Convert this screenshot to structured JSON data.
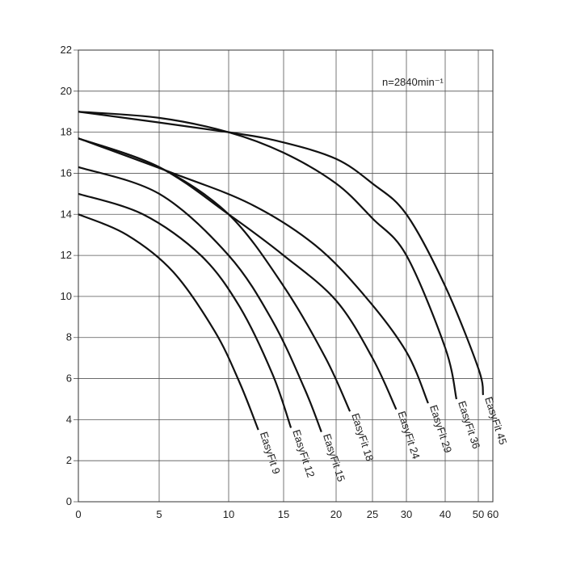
{
  "chart_data": {
    "type": "line",
    "annotation": "n=2840min⁻¹",
    "xlim": [
      0,
      60
    ],
    "xticks": [
      0,
      5,
      10,
      15,
      20,
      25,
      30,
      40,
      50,
      60
    ],
    "ylim": [
      0,
      22
    ],
    "yticks": [
      0,
      2,
      4,
      6,
      8,
      10,
      12,
      14,
      16,
      18,
      20,
      22
    ],
    "grid": true,
    "series": [
      {
        "name": "EasyFit 9",
        "color": "#111111",
        "x": [
          0,
          3,
          6,
          9,
          11,
          12.7
        ],
        "values": [
          14,
          13,
          11.2,
          8.3,
          5.8,
          3.5
        ]
      },
      {
        "name": "EasyFit 12",
        "color": "#111111",
        "x": [
          0,
          4,
          8,
          11,
          14,
          15.7
        ],
        "values": [
          15,
          14,
          12,
          9.5,
          6.2,
          3.6
        ]
      },
      {
        "name": "EasyFit 15",
        "color": "#111111",
        "x": [
          0,
          5,
          10,
          14,
          17,
          18.6
        ],
        "values": [
          16.3,
          15,
          12,
          8.8,
          5.5,
          3.4
        ]
      },
      {
        "name": "EasyFit 18",
        "color": "#111111",
        "x": [
          0,
          5,
          10,
          15,
          19,
          21.9
        ],
        "values": [
          17.7,
          16.3,
          14,
          10.5,
          7,
          4.4
        ]
      },
      {
        "name": "EasyFit 24",
        "color": "#111111",
        "x": [
          0,
          5,
          10,
          15,
          20,
          25,
          28.5
        ],
        "values": [
          17.7,
          16.3,
          14,
          12,
          9.8,
          7,
          4.5
        ]
      },
      {
        "name": "EasyFit 29",
        "color": "#111111",
        "x": [
          0,
          6,
          12,
          18,
          24,
          30,
          35.6
        ],
        "values": [
          17.7,
          16,
          14.5,
          12.5,
          10,
          7.3,
          4.8
        ]
      },
      {
        "name": "EasyFit 36",
        "color": "#111111",
        "x": [
          0,
          5,
          10,
          15,
          20,
          25,
          30,
          40,
          43.4
        ],
        "values": [
          19,
          18.7,
          18,
          17,
          15.5,
          13.8,
          12,
          7.5,
          5
        ]
      },
      {
        "name": "EasyFit 45",
        "color": "#111111",
        "x": [
          0,
          10,
          15,
          20,
          25,
          30,
          40,
          50,
          53.3
        ],
        "values": [
          19,
          18,
          17.5,
          16.7,
          15.5,
          14,
          10.5,
          6.5,
          5.2
        ]
      }
    ]
  }
}
